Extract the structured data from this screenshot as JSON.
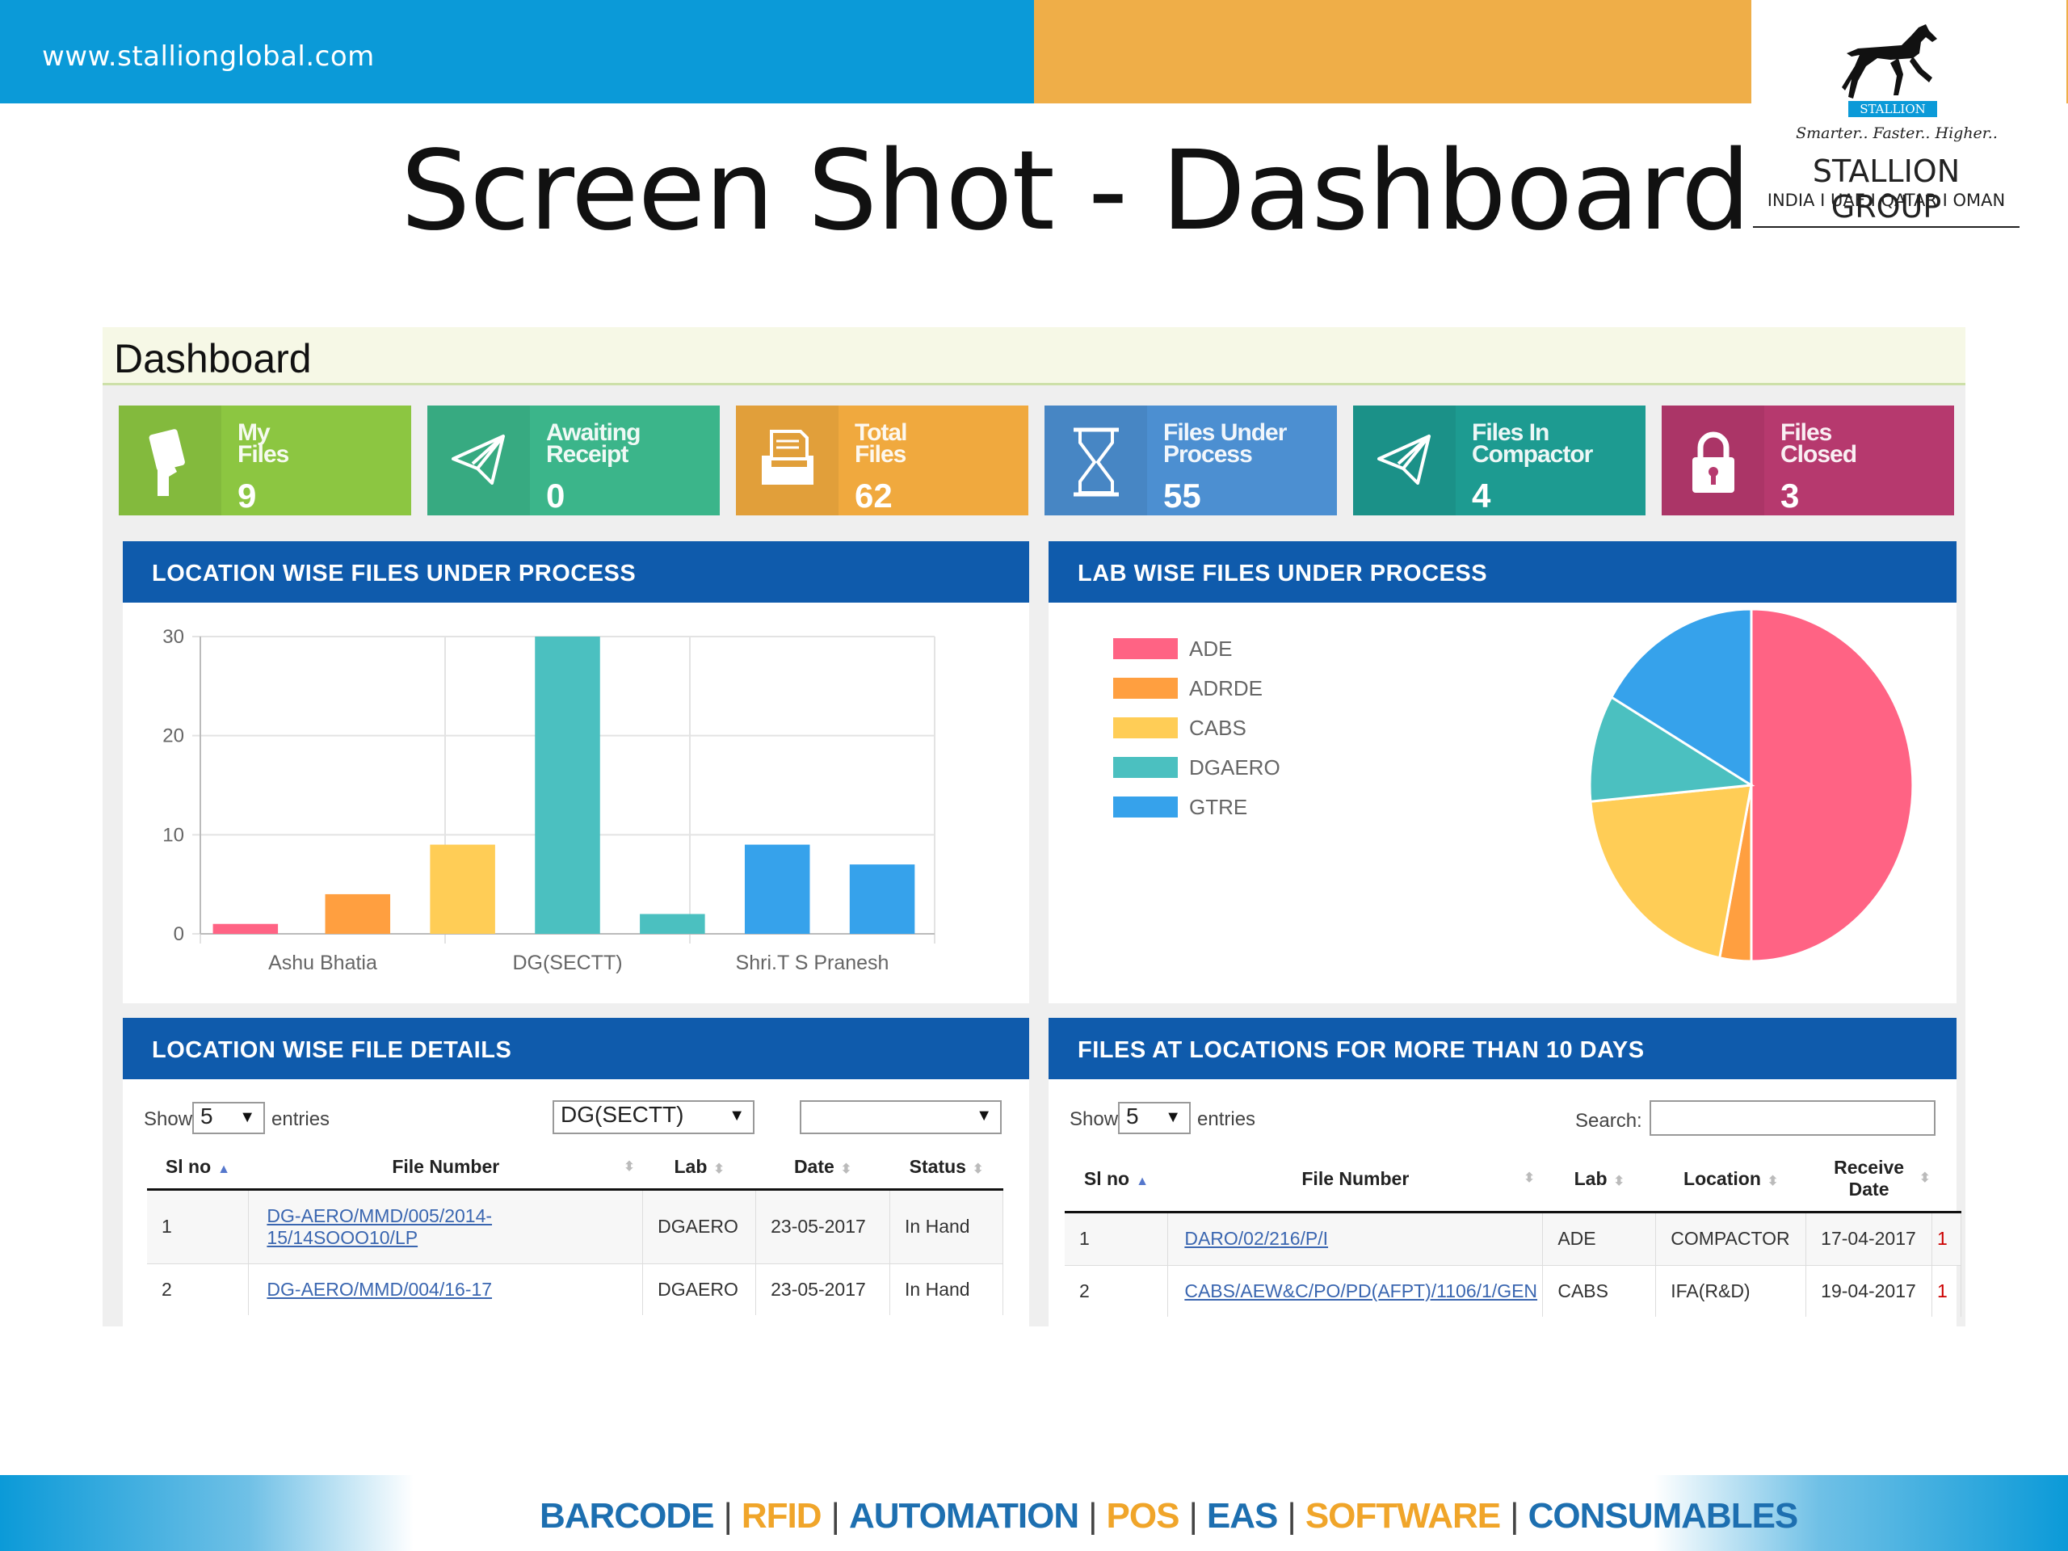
{
  "banner": {
    "url": "www.stallionglobal.com"
  },
  "logo": {
    "brand": "STALLION",
    "tagline": "Smarter.. Faster.. Higher..",
    "group": "STALLION GROUP",
    "countries": "INDIA I UAE I QATAR I OMAN"
  },
  "slide_title": "Screen Shot - Dashboard",
  "dashboard": {
    "title": "Dashboard",
    "tiles": [
      {
        "label_1": "My",
        "label_2": "Files",
        "count": "9",
        "icon": "hand-file-icon",
        "color": "#8cc641"
      },
      {
        "label_1": "Awaiting",
        "label_2": "Receipt",
        "count": "0",
        "icon": "paper-plane-icon",
        "color": "#3bb58a"
      },
      {
        "label_1": "Total",
        "label_2": "Files",
        "count": "62",
        "icon": "file-tray-icon",
        "color": "#f0a93e"
      },
      {
        "label_1": "Files Under",
        "label_2": "Process",
        "count": "55",
        "icon": "hourglass-icon",
        "color": "#4c8fd1"
      },
      {
        "label_1": "Files In",
        "label_2": "Compactor",
        "count": "4",
        "icon": "paper-plane-icon",
        "color": "#1d9b91"
      },
      {
        "label_1": "Files",
        "label_2": "Closed",
        "count": "3",
        "icon": "lock-icon",
        "color": "#b6396e"
      }
    ],
    "location_chart_title": "LOCATION WISE FILES UNDER PROCESS",
    "lab_chart_title": "LAB WISE FILES UNDER PROCESS",
    "details_title": "LOCATION WISE FILE DETAILS",
    "overdue_title": "FILES AT LOCATIONS FOR MORE THAN 10 DAYS"
  },
  "chart_data": [
    {
      "type": "bar",
      "categories": [
        "Ashu Bhatia",
        "",
        "DG(SECTT)",
        "",
        "Shri.T S Pranesh"
      ],
      "x_tick_labels": [
        "Ashu Bhatia",
        "DG(SECTT)",
        "Shri.T S Pranesh"
      ],
      "y_ticks": [
        "0",
        "10",
        "20",
        "30"
      ],
      "ylim": [
        0,
        30
      ],
      "grid": true,
      "bars": [
        {
          "category": "Ashu Bhatia",
          "value": 1,
          "color": "#ff6384"
        },
        {
          "category": "",
          "value": 4,
          "color": "#ff9f40"
        },
        {
          "category": "DG(SECTT)",
          "value": 9,
          "color": "#ffcd56"
        },
        {
          "category": "",
          "value": 30,
          "color": "#4bc0c0"
        },
        {
          "category": "",
          "value": 2,
          "color": "#4bc0c0"
        },
        {
          "category": "Shri.T S Pranesh",
          "value": 9,
          "color": "#36a2eb"
        },
        {
          "category": "Shri.T S Pranesh",
          "value": 7,
          "color": "#36a2eb"
        }
      ]
    },
    {
      "type": "pie",
      "legend_position": "left",
      "slices": [
        {
          "label": "ADE",
          "value": 27,
          "color": "#ff6384"
        },
        {
          "label": "ADRDE",
          "value": 1.7,
          "color": "#ff9f40"
        },
        {
          "label": "CABS",
          "value": 11,
          "color": "#ffcd56"
        },
        {
          "label": "DGAERO",
          "value": 5.3,
          "color": "#4bc0c0"
        },
        {
          "label": "GTRE",
          "value": 9,
          "color": "#36a2eb"
        }
      ]
    }
  ],
  "details_table": {
    "show_label": "Show",
    "entries_value": "5",
    "entries_label": "entries",
    "location_filter": "DG(SECTT)",
    "second_filter": "",
    "columns": [
      "Sl no",
      "File Number",
      "Lab",
      "Date",
      "Status"
    ],
    "rows": [
      {
        "sl": "1",
        "file_1": "DG-AERO/MMD/005/2014-",
        "file_2": "15/14SOOO10/LP",
        "lab": "DGAERO",
        "date": "23-05-2017",
        "status": "In Hand"
      },
      {
        "sl": "2",
        "file_1": "DG-AERO/MMD/004/16-17",
        "file_2": "",
        "lab": "DGAERO",
        "date": "23-05-2017",
        "status": "In Hand"
      }
    ]
  },
  "overdue_table": {
    "show_label": "Show",
    "entries_value": "5",
    "entries_label": "entries",
    "search_label": "Search:",
    "search_value": "",
    "columns": [
      "Sl no",
      "File Number",
      "Lab",
      "Location",
      "Receive",
      "Date"
    ],
    "rows": [
      {
        "sl": "1",
        "file": "DARO/02/216/P/I",
        "lab": "ADE",
        "location": "COMPACTOR",
        "date": "17-04-2017",
        "extra": "1"
      },
      {
        "sl": "2",
        "file": "CABS/AEW&C/PO/PD(AFPT)/1106/1/GEN",
        "lab": "CABS",
        "location": "IFA(R&D)",
        "date": "19-04-2017",
        "extra": "1"
      }
    ]
  },
  "footer": {
    "items": [
      "BARCODE",
      "RFID",
      "AUTOMATION",
      "POS",
      "EAS",
      "SOFTWARE",
      "CONSUMABLES"
    ],
    "separator": "|"
  }
}
